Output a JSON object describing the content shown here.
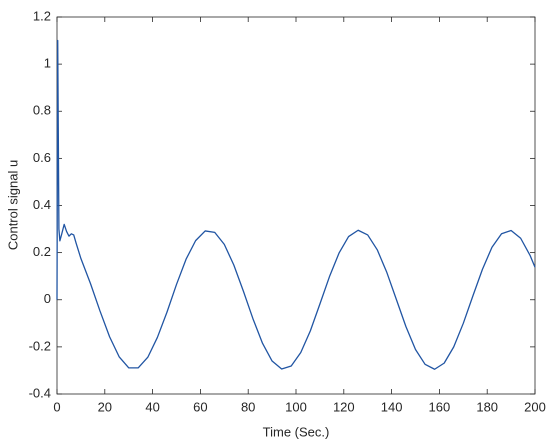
{
  "chart_data": {
    "type": "line",
    "xlabel": "Time (Sec.)",
    "ylabel": "Control signal u",
    "x": [
      0,
      0.3,
      0.8,
      1.2,
      2,
      3,
      4,
      5,
      6,
      7,
      8,
      10,
      14,
      18,
      22,
      26,
      30,
      34,
      38,
      42,
      46,
      50,
      54,
      58,
      62,
      66,
      70,
      74,
      78,
      82,
      86,
      90,
      94,
      98,
      102,
      106,
      110,
      114,
      118,
      122,
      126,
      130,
      134,
      138,
      142,
      146,
      150,
      154,
      158,
      162,
      166,
      170,
      174,
      178,
      182,
      186,
      190,
      194,
      198,
      200
    ],
    "series": [
      {
        "color": "#2155a3",
        "values": [
          0,
          1.1,
          0.3,
          0.25,
          0.28,
          0.32,
          0.29,
          0.27,
          0.28,
          0.275,
          0.24,
          0.175,
          0.069,
          -0.048,
          -0.157,
          -0.242,
          -0.289,
          -0.289,
          -0.244,
          -0.16,
          -0.053,
          0.065,
          0.172,
          0.251,
          0.292,
          0.286,
          0.235,
          0.147,
          0.036,
          -0.081,
          -0.185,
          -0.26,
          -0.294,
          -0.281,
          -0.224,
          -0.132,
          -0.018,
          0.098,
          0.198,
          0.268,
          0.295,
          0.275,
          0.212,
          0.116,
          0.001,
          -0.114,
          -0.211,
          -0.274,
          -0.295,
          -0.269,
          -0.2,
          -0.1,
          0.016,
          0.129,
          0.223,
          0.28,
          0.294,
          0.261,
          0.187,
          0.138
        ]
      }
    ],
    "xlim": [
      0,
      200
    ],
    "xticks": [
      0,
      20,
      40,
      60,
      80,
      100,
      120,
      140,
      160,
      180,
      200
    ],
    "ylim": [
      -0.4,
      1.2
    ],
    "yticks": [
      -0.4,
      -0.2,
      0,
      0.2,
      0.4,
      0.6,
      0.8,
      1,
      1.2
    ],
    "grid": false
  }
}
